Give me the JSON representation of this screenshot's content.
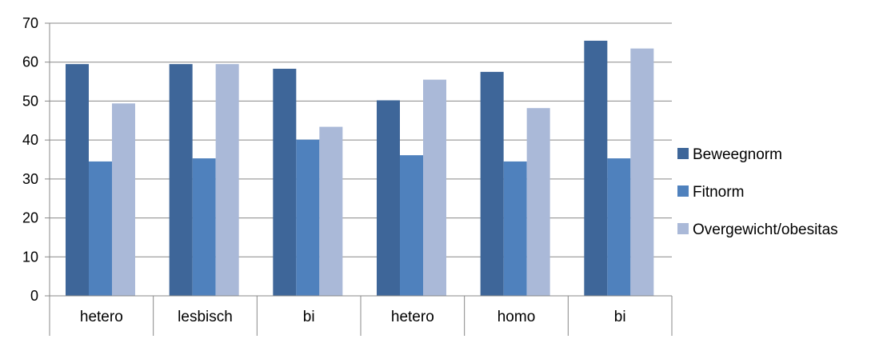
{
  "chart_data": {
    "type": "bar",
    "categories": [
      "hetero",
      "lesbisch",
      "bi",
      "hetero",
      "homo",
      "bi"
    ],
    "series": [
      {
        "name": "Beweegnorm",
        "values": [
          59.5,
          59.5,
          58.3,
          50.2,
          57.5,
          65.5
        ],
        "color": "#3e6699"
      },
      {
        "name": "Fitnorm",
        "values": [
          34.5,
          35.3,
          40.1,
          36.1,
          34.5,
          35.3
        ],
        "color": "#4f81bd"
      },
      {
        "name": "Overgewicht/obesitas",
        "values": [
          49.4,
          59.5,
          43.4,
          55.5,
          48.2,
          63.5
        ],
        "color": "#aab9d8"
      }
    ],
    "ylim": [
      0,
      70
    ],
    "yticks": [
      0,
      10,
      20,
      30,
      40,
      50,
      60,
      70
    ],
    "grid": true,
    "legend": "right"
  }
}
